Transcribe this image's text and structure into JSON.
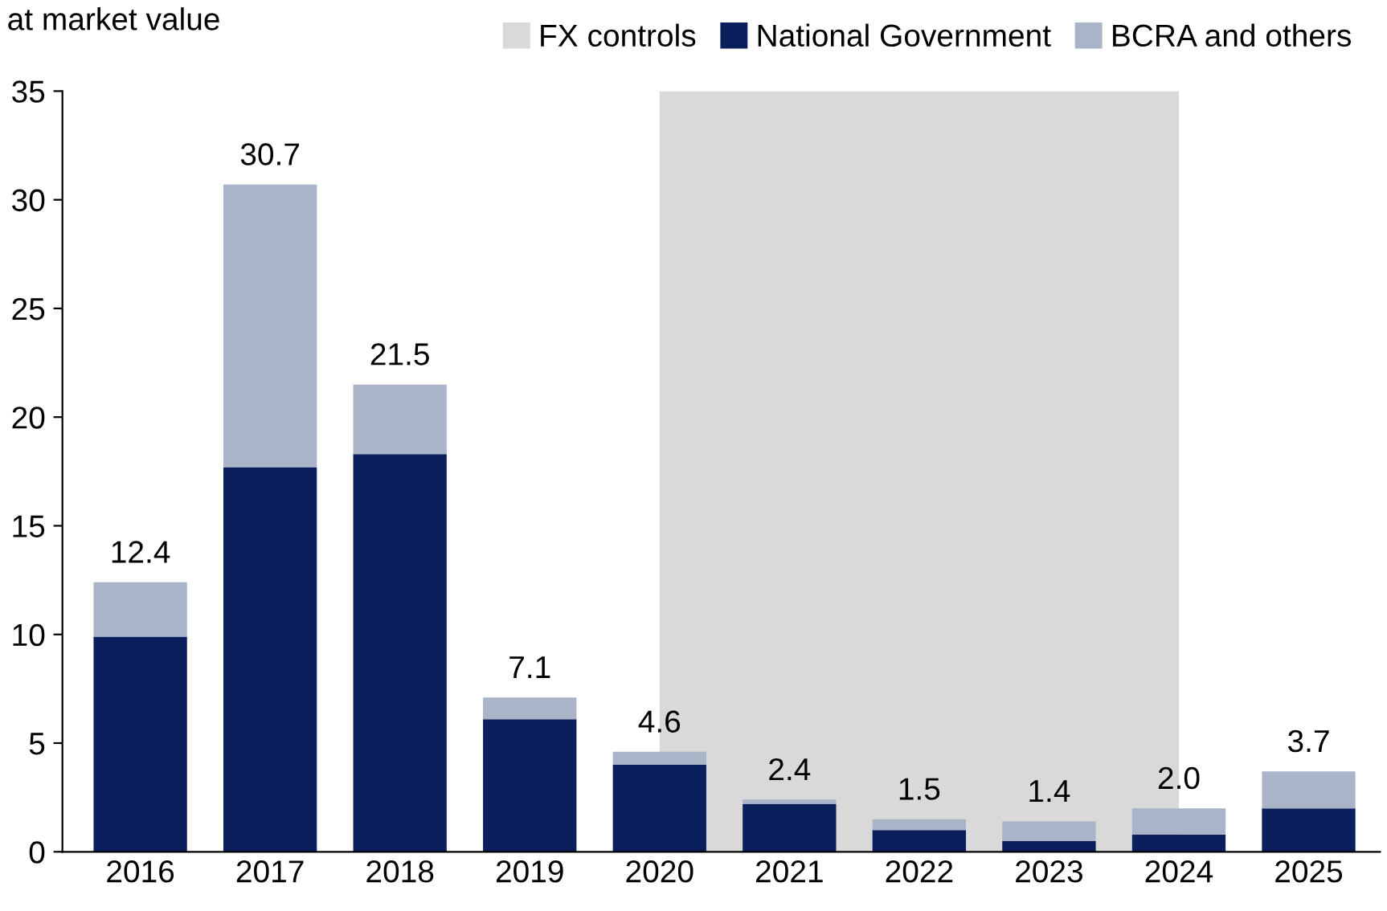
{
  "chart_data": {
    "type": "bar",
    "ylabel": "at market value",
    "stacked": true,
    "categories": [
      "2016",
      "2017",
      "2018",
      "2019",
      "2020",
      "2021",
      "2022",
      "2023",
      "2024",
      "2025"
    ],
    "series": [
      {
        "name": "National Government",
        "color": "#0b1f5c",
        "values": [
          9.9,
          17.7,
          18.3,
          6.1,
          4.0,
          2.2,
          1.0,
          0.5,
          0.8,
          2.0
        ]
      },
      {
        "name": "BCRA and others",
        "color": "#aab4c8",
        "values": [
          2.5,
          13.0,
          3.2,
          1.0,
          0.6,
          0.2,
          0.5,
          0.9,
          1.2,
          1.7
        ]
      }
    ],
    "totals": [
      "12.4",
      "30.7",
      "21.5",
      "7.1",
      "4.6",
      "2.4",
      "1.5",
      "1.4",
      "2.0",
      "3.7"
    ],
    "bands": [
      {
        "axis": "x",
        "from": "2020",
        "to": "2024",
        "label": "FX controls",
        "color": "#d9d9d9"
      }
    ],
    "ylim": [
      0,
      35
    ],
    "yticks": [
      0,
      5,
      10,
      15,
      20,
      25,
      30,
      35
    ],
    "grid": false,
    "legend": "top"
  }
}
